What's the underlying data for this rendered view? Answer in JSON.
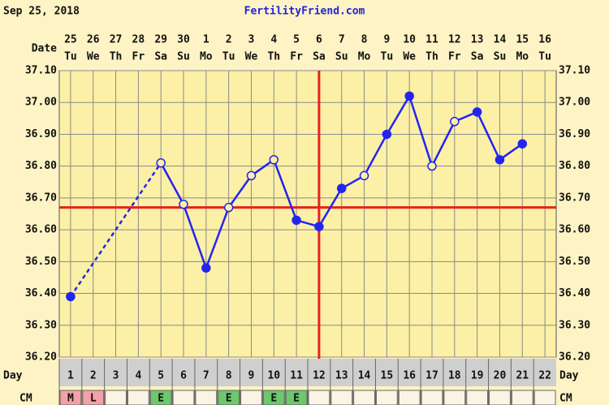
{
  "chart_data": {
    "type": "line",
    "title": "FertilityFriend.com",
    "date": "Sep 25, 2018",
    "date_label": "Date",
    "x": [
      1,
      2,
      3,
      4,
      5,
      6,
      7,
      8,
      9,
      10,
      11,
      12,
      13,
      14,
      15,
      16,
      17,
      18,
      19,
      20,
      21,
      22
    ],
    "x_label": "Day",
    "dates": [
      "25",
      "26",
      "27",
      "28",
      "29",
      "30",
      "1",
      "2",
      "3",
      "4",
      "5",
      "6",
      "7",
      "8",
      "9",
      "10",
      "11",
      "12",
      "13",
      "14",
      "15",
      "16"
    ],
    "weekdays": [
      "Tu",
      "We",
      "Th",
      "Fr",
      "Sa",
      "Su",
      "Mo",
      "Tu",
      "We",
      "Th",
      "Fr",
      "Sa",
      "Su",
      "Mo",
      "Tu",
      "We",
      "Th",
      "Fr",
      "Sa",
      "Su",
      "Mo",
      "Tu"
    ],
    "series": [
      {
        "color": "#2424f0",
        "values": [
          36.39,
          null,
          null,
          null,
          36.81,
          36.68,
          36.48,
          36.67,
          36.77,
          36.82,
          36.63,
          36.61,
          36.73,
          36.77,
          36.9,
          37.02,
          36.8,
          36.94,
          36.97,
          36.82,
          36.87,
          null
        ],
        "markers": [
          "filled",
          null,
          null,
          null,
          "open",
          "open",
          "filled",
          "open",
          "open",
          "open",
          "filled",
          "filled",
          "filled",
          "open",
          "filled",
          "filled",
          "open",
          "open",
          "filled",
          "filled",
          "filled",
          null
        ]
      }
    ],
    "xlim": [
      0.5,
      22.5
    ],
    "ylim": [
      36.2,
      37.1
    ],
    "yticks": [
      {
        "value": 36.2,
        "label": "36.20"
      },
      {
        "value": 36.3,
        "label": "36.30"
      },
      {
        "value": 36.4,
        "label": "36.40"
      },
      {
        "value": 36.5,
        "label": "36.50"
      },
      {
        "value": 36.6,
        "label": "36.60"
      },
      {
        "value": 36.7,
        "label": "36.70"
      },
      {
        "value": 36.8,
        "label": "36.80"
      },
      {
        "value": 36.9,
        "label": "36.90"
      },
      {
        "value": 37.0,
        "label": "37.00"
      },
      {
        "value": 37.1,
        "label": "37.10"
      }
    ],
    "grid": true,
    "coverline": 36.67,
    "ovulation_day": 12,
    "reference_color": "#e82020",
    "cm": {
      "label": "CM",
      "values": [
        "M",
        "L",
        null,
        null,
        "E",
        null,
        null,
        "E",
        null,
        "E",
        "E",
        null,
        null,
        null,
        null,
        null,
        null,
        null,
        null,
        null,
        null,
        null
      ],
      "colors": {
        "M": "#f4a0a8",
        "L": "#f4a0a8",
        "E": "#6cc86c"
      }
    }
  }
}
